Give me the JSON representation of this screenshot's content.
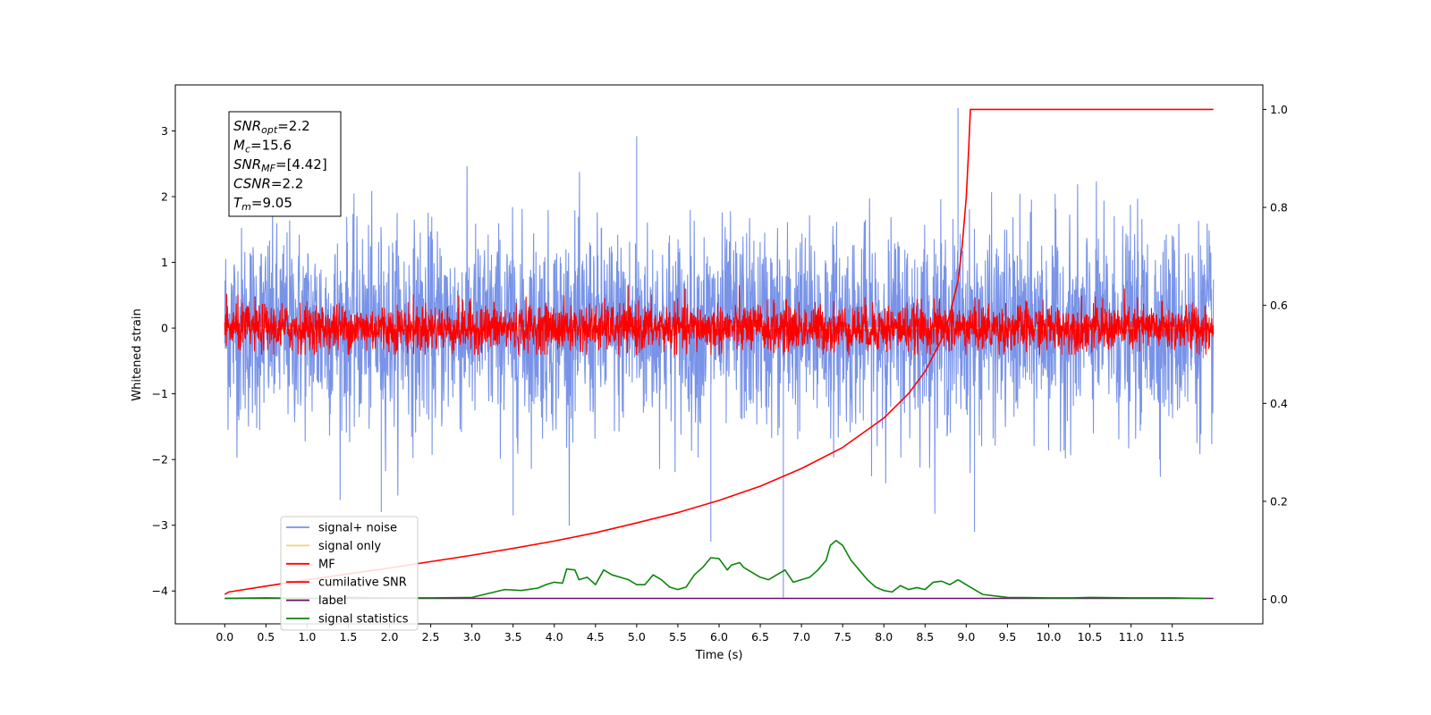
{
  "chart_data": {
    "type": "line",
    "xlabel": "Time (s)",
    "ylabel_left": "Whitened strain",
    "ylabel_right": "",
    "xlim": [
      -0.6,
      12.6
    ],
    "ylim_left": [
      -4.5,
      3.7
    ],
    "ylim_right": [
      -0.05,
      1.05
    ],
    "x_ticks": [
      "0.0",
      "0.5",
      "1.0",
      "1.5",
      "2.0",
      "2.5",
      "3.0",
      "3.5",
      "4.0",
      "4.5",
      "5.0",
      "5.5",
      "6.0",
      "6.5",
      "7.0",
      "7.5",
      "8.0",
      "8.5",
      "9.0",
      "9.5",
      "10.0",
      "10.5",
      "11.0",
      "11.5"
    ],
    "y_ticks_left": [
      "3",
      "2",
      "1",
      "0",
      "−1",
      "−2",
      "−3",
      "−4"
    ],
    "y_ticks_right": [
      "1.0",
      "0.8",
      "0.6",
      "0.4",
      "0.2",
      "0.0"
    ],
    "grid": false,
    "legend_position": "lower-left",
    "info_box": {
      "lines": [
        {
          "sym": "SNR",
          "sub": "opt",
          "value": "=2.2"
        },
        {
          "sym": "M",
          "sub": "c",
          "value": "=15.6"
        },
        {
          "sym": "SNR",
          "sub": "MF",
          "value": "=[4.42]"
        },
        {
          "sym": "CSNR",
          "sub": "",
          "value": "=2.2"
        },
        {
          "sym": "T",
          "sub": "m",
          "value": "=9.05"
        }
      ]
    },
    "series": [
      {
        "name": "signal+ noise",
        "axis": "left",
        "color": "#7893e8",
        "x_range": [
          0.0,
          12.0
        ],
        "noise_std": 0.75,
        "noise_min": -3.0,
        "noise_max": 3.3,
        "spikes": [
          [
            8.9,
            3.35
          ],
          [
            5.0,
            2.92
          ],
          [
            3.5,
            -2.85
          ],
          [
            1.9,
            -2.8
          ],
          [
            5.9,
            -3.25
          ],
          [
            9.1,
            -3.1
          ],
          [
            6.78,
            -4.1
          ]
        ]
      },
      {
        "name": "signal only",
        "axis": "left",
        "color": "#f5cf7a",
        "x": [
          0.0,
          12.0
        ],
        "y": [
          0.0,
          0.0
        ]
      },
      {
        "name": "MF",
        "axis": "left",
        "color": "#ff0000",
        "x_range": [
          0.0,
          12.0
        ],
        "noise_std": 0.18,
        "noise_min": -0.4,
        "noise_max": 1.0
      },
      {
        "name": "cumilative SNR",
        "axis": "right",
        "color": "#ff0000",
        "x": [
          0.0,
          0.05,
          0.5,
          1.0,
          1.5,
          2.0,
          2.5,
          3.0,
          3.5,
          4.0,
          4.5,
          5.0,
          5.5,
          6.0,
          6.5,
          7.0,
          7.5,
          8.0,
          8.3,
          8.5,
          8.7,
          8.8,
          8.9,
          8.95,
          9.0,
          9.03,
          9.05,
          9.5,
          10.0,
          10.5,
          11.0,
          11.5,
          12.0
        ],
        "y": [
          0.01,
          0.015,
          0.027,
          0.04,
          0.052,
          0.064,
          0.077,
          0.09,
          0.104,
          0.119,
          0.136,
          0.156,
          0.177,
          0.202,
          0.231,
          0.267,
          0.31,
          0.37,
          0.42,
          0.465,
          0.53,
          0.58,
          0.65,
          0.72,
          0.82,
          0.92,
          1.0,
          1.0,
          1.0,
          1.0,
          1.0,
          1.0,
          1.0
        ]
      },
      {
        "name": "label",
        "axis": "right",
        "color": "#6a0f6a",
        "x": [
          0.0,
          12.0
        ],
        "y": [
          0.002,
          0.002
        ]
      },
      {
        "name": "signal statistics",
        "axis": "right",
        "color": "#0a850a",
        "x": [
          0.0,
          0.5,
          1.0,
          1.5,
          2.0,
          2.5,
          3.0,
          3.2,
          3.4,
          3.6,
          3.8,
          3.9,
          4.0,
          4.1,
          4.15,
          4.25,
          4.3,
          4.4,
          4.5,
          4.6,
          4.7,
          4.8,
          4.9,
          5.0,
          5.1,
          5.2,
          5.3,
          5.4,
          5.5,
          5.6,
          5.7,
          5.8,
          5.9,
          6.0,
          6.1,
          6.15,
          6.25,
          6.3,
          6.4,
          6.5,
          6.6,
          6.7,
          6.8,
          6.9,
          7.0,
          7.1,
          7.2,
          7.3,
          7.35,
          7.42,
          7.5,
          7.6,
          7.7,
          7.8,
          7.9,
          8.0,
          8.1,
          8.2,
          8.3,
          8.4,
          8.5,
          8.6,
          8.7,
          8.8,
          8.9,
          9.0,
          9.1,
          9.2,
          9.5,
          10.0,
          10.3,
          10.5,
          11.0,
          11.5,
          11.9
        ],
        "y": [
          0.002,
          0.003,
          0.002,
          0.004,
          0.003,
          0.003,
          0.004,
          0.012,
          0.02,
          0.018,
          0.023,
          0.03,
          0.035,
          0.033,
          0.062,
          0.06,
          0.04,
          0.045,
          0.03,
          0.06,
          0.05,
          0.045,
          0.04,
          0.03,
          0.03,
          0.05,
          0.04,
          0.025,
          0.02,
          0.025,
          0.05,
          0.065,
          0.085,
          0.083,
          0.06,
          0.07,
          0.075,
          0.065,
          0.055,
          0.045,
          0.04,
          0.05,
          0.06,
          0.035,
          0.04,
          0.045,
          0.06,
          0.08,
          0.11,
          0.12,
          0.11,
          0.08,
          0.06,
          0.04,
          0.025,
          0.018,
          0.015,
          0.028,
          0.02,
          0.024,
          0.02,
          0.035,
          0.037,
          0.03,
          0.04,
          0.03,
          0.02,
          0.01,
          0.004,
          0.003,
          0.003,
          0.004,
          0.003,
          0.003,
          0.002
        ]
      }
    ]
  }
}
